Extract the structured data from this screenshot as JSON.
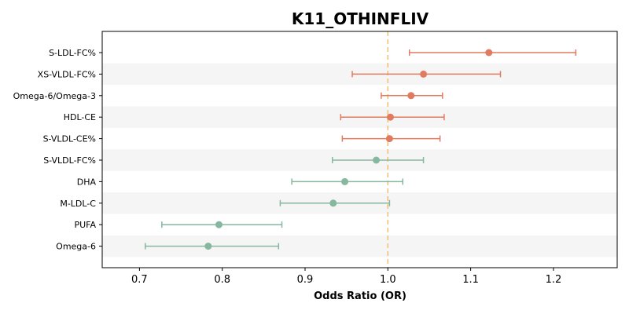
{
  "chart_data": {
    "type": "forest",
    "title": "K11_OTHINFLIV",
    "xlabel": "Odds Ratio (OR)",
    "ylabel": "",
    "xlim": [
      0.655,
      1.277
    ],
    "xticks": [
      0.7,
      0.8,
      0.9,
      1.0,
      1.1,
      1.2
    ],
    "xtick_labels": [
      "0.7",
      "0.8",
      "0.9",
      "1.0",
      "1.1",
      "1.2"
    ],
    "reference_line": 1.0,
    "grid": false,
    "alternating_row_shading": true,
    "colors": {
      "positive": "#e07b5f",
      "negative": "#86b8a0",
      "reference": "#f0c070",
      "row_shade": "#f5f5f5"
    },
    "categories": [
      "S-LDL-FC%",
      "XS-VLDL-FC%",
      "Omega-6/Omega-3",
      "HDL-CE",
      "S-VLDL-CE%",
      "S-VLDL-FC%",
      "DHA",
      "M-LDL-C",
      "PUFA",
      "Omega-6"
    ],
    "or": [
      1.122,
      1.043,
      1.028,
      1.003,
      1.002,
      0.986,
      0.948,
      0.934,
      0.796,
      0.783
    ],
    "lower": [
      1.026,
      0.957,
      0.992,
      0.943,
      0.945,
      0.933,
      0.884,
      0.87,
      0.727,
      0.707
    ],
    "upper": [
      1.227,
      1.136,
      1.066,
      1.068,
      1.063,
      1.043,
      1.018,
      1.002,
      0.872,
      0.868
    ]
  }
}
